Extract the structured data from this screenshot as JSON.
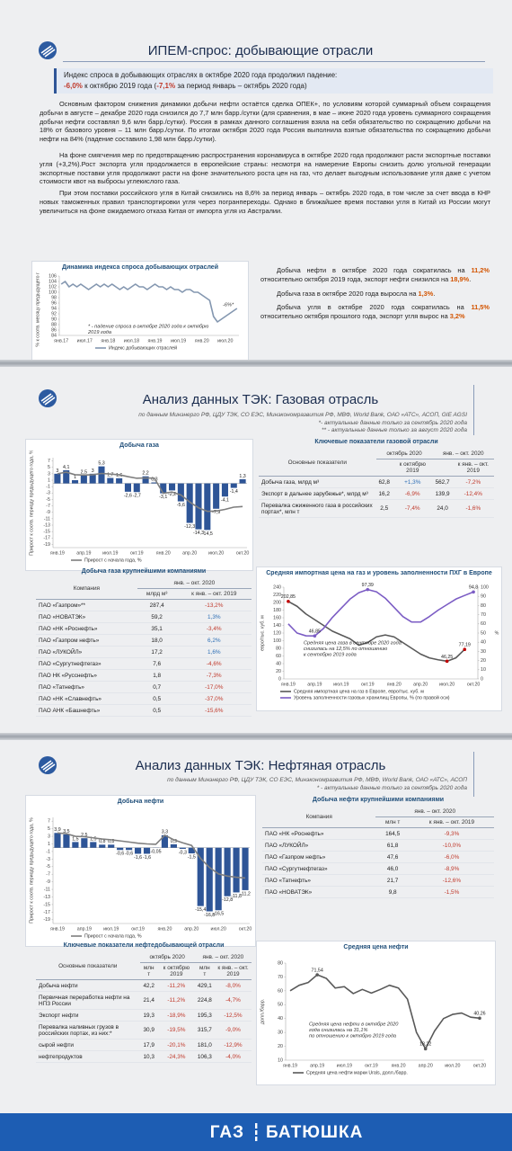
{
  "section1": {
    "title": "ИПЕМ-спрос: добывающие отрасли",
    "highlight": {
      "lead": "Индекс спроса в добывающих отраслях в октябре 2020 года продолжил падение:",
      "parts": [
        {
          "text": "-6,0%",
          "em": true
        },
        {
          "text": " к октябрю 2019 года ("
        },
        {
          "text": "-7,1%",
          "em": true
        },
        {
          "text": " за период январь – октябрь 2020 года)"
        }
      ]
    },
    "paragraphs": [
      "Основным фактором снижения динамики добычи нефти остаётся сделка ОПЕК+, по условиям которой суммарный объем сокращения добычи в августе – декабре 2020 года снизился до 7,7 млн барр./сутки (для сравнения, в мае – июне 2020 года уровень суммарного сокращения добычи нефти составлял 9,6 млн барр./сутки). Россия в рамках данного соглашения взяла на себя обязательство по сокращению добычи на 18% от базового уровня – 11 млн барр./сутки. По итогам октября 2020 года Россия выполнила взятые обязательства по сокращению добычи нефти на 84% (падение составило 1,98 млн барр./сутки).",
      "На фоне смягчения мер по предотвращению распространения коронавируса в октябре 2020 года продолжают расти экспортные поставки угля (+3,2%).Рост экспорта угля продолжается в европейские страны: несмотря на намерение Европы снизить долю угольной генерации экспортные поставки угля продолжают расти на фоне значительного роста цен на газ, что делает выгодным использование угля даже с учетом стоимости квот на выбросы углекислого газа.",
      "При этом поставки российского угля в Китай снизились на 8,6% за период январь – октябрь 2020 года, в том числе за счет ввода в КНР новых таможенных правил транспортировки угля через погранпереходы. Однако в ближайшее время поставки угля в Китай из России могут увеличиться на фоне ожидаемого отказа Китая от импорта угля из Австралии."
    ],
    "index_chart": {
      "type": "line",
      "title": "Динамика индекса спроса добывающих отраслей",
      "y_label": "% к соотв. месяцу предыдущего года",
      "categories": [
        "янв.17",
        null,
        null,
        null,
        null,
        null,
        "июл.17",
        null,
        null,
        null,
        null,
        null,
        "янв.18",
        null,
        null,
        null,
        null,
        null,
        "июл.18",
        null,
        null,
        null,
        null,
        null,
        "янв.19",
        null,
        null,
        null,
        null,
        null,
        "июл.19",
        null,
        null,
        null,
        null,
        null,
        "янв.20",
        null,
        null,
        null,
        null,
        null,
        "июл.20",
        null,
        null,
        null
      ],
      "series": [
        {
          "name": "Индекс добывающих отраслей",
          "kind": "line",
          "color": "#8497b0",
          "values": [
            103,
            104,
            102,
            103,
            102,
            103,
            102,
            101,
            102,
            103,
            102,
            103,
            102,
            103,
            102,
            101,
            102,
            101,
            102,
            103,
            102,
            102,
            101,
            102,
            103,
            102,
            102,
            101,
            102,
            101,
            101,
            100,
            101,
            101,
            100,
            100,
            99,
            98,
            97,
            91,
            89,
            90,
            91,
            92,
            93,
            94
          ]
        }
      ],
      "ylim": [
        84,
        106
      ],
      "yticks": [
        84,
        86,
        88,
        90,
        92,
        94,
        96,
        98,
        100,
        102,
        104,
        106
      ],
      "grid": false,
      "annotations": [
        {
          "lines": [
            "-6%*"
          ]
        },
        {
          "lines": [
            "* - падение спроса в октябре 2020 года к октябрю",
            "2019 года"
          ]
        }
      ]
    },
    "summary": [
      [
        {
          "text": "Добыча нефти в октябре 2020 года сократилась на "
        },
        {
          "text": "11,2%",
          "em": true
        },
        {
          "text": " относительно октября 2019 года, экспорт нефти снизился на "
        },
        {
          "text": "18,9%",
          "em": true
        },
        {
          "text": "."
        }
      ],
      [
        {
          "text": "Добыча газа в октябре 2020 года выросла на "
        },
        {
          "text": "1,3%",
          "em": true
        },
        {
          "text": "."
        }
      ],
      [
        {
          "text": "Добыча угля в октябре 2020 года сократилась на "
        },
        {
          "text": "11,5%",
          "em": true
        },
        {
          "text": " относительно октября прошлого года, экспорт угля вырос на "
        },
        {
          "text": "3,2%",
          "em": true
        }
      ]
    ]
  },
  "section2": {
    "title": "Анализ данных ТЭК: Газовая отрасль",
    "source": "по данным Минэнерго РФ, ЦДУ ТЭК, СО ЕЭС, Минэкономразвития РФ, МВФ, World Bank, ОАО «АТС», АСОП, GIE AGSI",
    "notes": [
      "*- актуальные данные только за сентябрь 2020 года",
      "** - актуальные данные только за август 2020 года"
    ],
    "production_chart": {
      "type": "bar",
      "title": "Добыча газа",
      "y_label": "Прирост к соотв. периоду предыдущего года, %",
      "categories": [
        "янв.19",
        null,
        null,
        "апр.19",
        null,
        null,
        "июл.19",
        null,
        null,
        "окт.19",
        null,
        null,
        "янв.20",
        null,
        null,
        "апр.20",
        null,
        null,
        "июл.20",
        null,
        null,
        "окт.20"
      ],
      "series": [
        {
          "kind": "bar",
          "color": "#2e5597",
          "values": [
            3,
            4.1,
            1,
            2.5,
            3,
            5.3,
            1.7,
            1.6,
            -2.6,
            -2.7,
            2.2,
            0.3,
            -3.1,
            -2.2,
            -5.6,
            -12.3,
            -14.3,
            -14.5,
            -7.9,
            -4.1,
            -1.4,
            1.3
          ],
          "value_labels": [
            "3",
            "4,1",
            "1",
            "2,5",
            "3",
            "5,3",
            "1,7",
            "1,6",
            "-2,6",
            "-2,7",
            "2,2",
            "0,3",
            "-3,1",
            "-2,2",
            "-5,6",
            "-12,3",
            "-14,3",
            "-14,5",
            "-7,9",
            "-4,1",
            "-1,4",
            "1,3"
          ]
        },
        {
          "name": "Прирост с начала года, %",
          "kind": "line",
          "color": "#7f7f7f",
          "values": [
            3,
            3.5,
            2.7,
            2.6,
            2.7,
            3.1,
            2.9,
            2.7,
            2.1,
            1.6,
            1.7,
            1.6,
            -3.1,
            -2.7,
            -3.6,
            -5.8,
            -7.6,
            -8.7,
            -8.6,
            -8.1,
            -7.4,
            -7.2
          ]
        }
      ],
      "ylim": [
        -20,
        8
      ],
      "yticks": [
        -19,
        -17,
        -15,
        -13,
        -11,
        -9,
        -7,
        -5,
        -3,
        -1,
        1,
        3,
        5,
        7
      ],
      "grid": false
    },
    "key_table": {
      "title": "Ключевые показатели газовой отрасли",
      "columns_top": [
        "Основные показатели",
        "октябрь 2020",
        "янв. – окт. 2020"
      ],
      "columns_sub": [
        "к октябрю 2019",
        "к янв. – окт. 2019"
      ],
      "rows": [
        [
          "Добыча газа, млрд м³",
          "62,8",
          "+1,3%",
          "562,7",
          "-7,2%"
        ],
        [
          "Экспорт в дальнее зарубежье*, млрд м³",
          "16,2",
          "-6,9%",
          "139,9",
          "-12,4%"
        ],
        [
          "Перевалка сжиженного газа в российских портах*, млн т",
          "2,5",
          "-7,4%",
          "24,0",
          "-1,6%"
        ]
      ]
    },
    "companies_table": {
      "title": "Добыча газа крупнейшими компаниями",
      "columns_top": [
        "Компания",
        "янв. – окт. 2020"
      ],
      "columns_sub": [
        "млрд м³",
        "к янв. – окт. 2019"
      ],
      "rows": [
        [
          "ПАО «Газпром»**",
          "287,4",
          "-13,2%"
        ],
        [
          "ПАО «НОВАТЭК»",
          "59,2",
          "1,3%"
        ],
        [
          "ПАО «НК «Роснефть»",
          "35,1",
          "-3,4%"
        ],
        [
          "ПАО «Газпром нефть»",
          "18,0",
          "6,2%"
        ],
        [
          "ПАО «ЛУКОЙЛ»",
          "17,2",
          "1,6%"
        ],
        [
          "ПАО «Сургутнефтегаз»",
          "7,6",
          "-4,6%"
        ],
        [
          "ПАО НК «Русснефть»",
          "1,8",
          "-7,3%"
        ],
        [
          "ПАО «Татнефть»",
          "0,7",
          "-17,0%"
        ],
        [
          "ПАО «НК «Славнефть»",
          "0,5",
          "-37,0%"
        ],
        [
          "ПАО АНК «Башнефть»",
          "0,5",
          "-15,6%"
        ]
      ]
    },
    "import_chart": {
      "type": "line",
      "title": "Средняя импортная цена на газ и уровень заполненности ПХГ в Европе",
      "y_label": "евро/тыс. куб. м",
      "y2_label": "%",
      "categories": [
        "янв.19",
        null,
        null,
        "апр.19",
        null,
        null,
        "июл.19",
        null,
        null,
        "окт.19",
        null,
        null,
        "янв.20",
        null,
        null,
        "апр.20",
        null,
        null,
        "июл.20",
        null,
        null,
        "окт.20"
      ],
      "series": [
        {
          "name": "Средняя импортная цена на газ в Европе, евро/тыс. куб. м",
          "kind": "line",
          "color": "#595959",
          "marker_color": "#c00000",
          "values": [
            202.85,
            190,
            170,
            155,
            140,
            125,
            115,
            105,
            88.2,
            95,
            110,
            115,
            110,
            95,
            80,
            65,
            55,
            50,
            46.25,
            55,
            77.19,
            null
          ],
          "value_labels": [
            "202,85",
            null,
            null,
            null,
            null,
            null,
            null,
            null,
            null,
            null,
            null,
            null,
            null,
            null,
            null,
            null,
            null,
            null,
            "46,25",
            null,
            "77,19",
            null
          ]
        },
        {
          "name": "Уровень заполненности газовых хранилищ Европы, % (по правой оси)",
          "kind": "line",
          "color": "#7b5cc4",
          "axis": "y2",
          "values": [
            60,
            50,
            47,
            46.85,
            55,
            67,
            77,
            87,
            94,
            97.39,
            95,
            88,
            78,
            68,
            62,
            62,
            68,
            75,
            81,
            87,
            91,
            94.8
          ],
          "value_labels": [
            null,
            null,
            null,
            "46,85",
            null,
            null,
            null,
            null,
            null,
            "97,39",
            null,
            null,
            null,
            null,
            null,
            null,
            null,
            null,
            null,
            null,
            null,
            "94,8"
          ]
        }
      ],
      "ylim": [
        0,
        240
      ],
      "yticks": [
        0,
        20,
        40,
        60,
        80,
        100,
        120,
        140,
        160,
        180,
        200,
        220,
        240
      ],
      "y2lim": [
        0,
        100
      ],
      "y2ticks": [
        0,
        10,
        20,
        30,
        40,
        50,
        60,
        70,
        80,
        90,
        100
      ],
      "grid": false,
      "annotations": [
        {
          "lines": [
            "Средняя цена газа в сентябре 2020 года",
            "снизилась на 12,5% по отношению",
            "к сентябрю 2019 года"
          ]
        }
      ]
    }
  },
  "section3": {
    "title": "Анализ данных ТЭК: Нефтяная отрасль",
    "source": "по данным Минэнерго РФ, ЦДУ ТЭК, СО ЕЭС, Минэкономразвития РФ, МВФ, World Bank, ОАО «АТС», АСОП",
    "notes": [
      "* - актуальные данные только за сентябрь 2020 года"
    ],
    "production_chart": {
      "type": "bar",
      "title": "Добыча нефти",
      "y_label": "Прирост к соотв. периоду предыдущего года, %",
      "categories": [
        "янв.19",
        null,
        null,
        "апр.19",
        null,
        null,
        "июл.19",
        null,
        null,
        "окт.19",
        null,
        null,
        "янв.20",
        null,
        null,
        "апр.20",
        null,
        null,
        "июл.20",
        null,
        null,
        "окт.20"
      ],
      "series": [
        {
          "kind": "bar",
          "color": "#2e5597",
          "values": [
            3.9,
            3.5,
            1.5,
            2.5,
            1.5,
            0.8,
            0.8,
            -0.6,
            -0.6,
            -1.6,
            -1.6,
            -0.05,
            3.3,
            0.9,
            -0.3,
            -1.5,
            -15.4,
            -16.8,
            -16.5,
            -12.8,
            -11.8,
            -11.2
          ],
          "value_labels": [
            "3,9",
            "3,5",
            "1,5",
            "2,5",
            "1,5",
            "0,8",
            "0,8",
            "-0,6",
            "-0,6",
            "-1,6",
            "-1,6",
            "-0,05",
            "3,3",
            "0,9",
            "-0,3",
            "-1,5",
            "-15,4",
            "-16,8",
            "-16,5",
            "-12,8",
            "-11,8",
            "-11,2"
          ]
        },
        {
          "name": "Прирост с начала года, %",
          "kind": "line",
          "color": "#7f7f7f",
          "values": [
            3.9,
            3.7,
            3,
            2.9,
            2.6,
            2.3,
            2.1,
            1.8,
            1.5,
            1.2,
            1,
            0.9,
            3.3,
            2.1,
            1.3,
            0.6,
            -2.8,
            -5.2,
            -6.9,
            -7.5,
            -7.8,
            -8
          ]
        }
      ],
      "ylim": [
        -20,
        8
      ],
      "yticks": [
        -19,
        -17,
        -15,
        -13,
        -11,
        -9,
        -7,
        -5,
        -3,
        -1,
        1,
        3,
        5,
        7
      ],
      "grid": false
    },
    "companies_table": {
      "title": "Добыча нефти крупнейшими компаниями",
      "columns_top": [
        "Компания",
        "янв. – окт. 2020"
      ],
      "columns_sub": [
        "млн т",
        "к янв. – окт. 2019"
      ],
      "rows": [
        [
          "ПАО «НК «Роснефть»",
          "164,5",
          "-9,3%"
        ],
        [
          "ПАО «ЛУКОЙЛ»",
          "61,8",
          "-10,0%"
        ],
        [
          "ПАО «Газпром нефть»",
          "47,6",
          "-6,0%"
        ],
        [
          "ПАО «Сургутнефтегаз»",
          "46,0",
          "-8,9%"
        ],
        [
          "ПАО «Татнефть»",
          "21,7",
          "-12,6%"
        ],
        [
          "ПАО «НОВАТЭК»",
          "9,8",
          "-1,5%"
        ]
      ]
    },
    "key_table": {
      "title": "Ключевые показатели нефтедобывающей отрасли",
      "columns_top": [
        "Основные показатели",
        "октябрь 2020",
        "янв. – окт. 2020"
      ],
      "columns_sub": [
        "млн т",
        "к октябрю 2019",
        "млн т",
        "к янв. – окт. 2019"
      ],
      "rows": [
        [
          "Добыча нефти",
          "42,2",
          "-11,2%",
          "429,1",
          "-8,0%"
        ],
        [
          "Первичная переработка нефти на НПЗ России",
          "21,4",
          "-11,2%",
          "224,8",
          "-4,7%"
        ],
        [
          "Экспорт нефти",
          "19,3",
          "-18,9%",
          "195,3",
          "-12,5%"
        ],
        [
          "Перевалка наливных грузов в российских портах, из них:*",
          "30,9",
          "-19,5%",
          "315,7",
          "-9,0%"
        ],
        [
          "сырой нефти",
          "17,9",
          "-20,1%",
          "181,0",
          "-12,9%"
        ],
        [
          "нефтепродуктов",
          "10,3",
          "-24,3%",
          "106,3",
          "-4,0%"
        ]
      ]
    },
    "price_chart": {
      "type": "line",
      "title": "Средняя цена нефти",
      "y_label": "долл./барр.",
      "categories": [
        "янв.19",
        null,
        null,
        "апр.19",
        null,
        null,
        "июл.19",
        null,
        null,
        "окт.19",
        null,
        null,
        "янв.20",
        null,
        null,
        "апр.20",
        null,
        null,
        "июл.20",
        null,
        null,
        "окт.20"
      ],
      "series": [
        {
          "name": "Средняя цена нефти марки Urals, долл./барр.",
          "kind": "line",
          "color": "#595959",
          "marker_color": "#595959",
          "values": [
            60,
            64,
            66,
            71.54,
            69,
            62,
            63,
            58,
            61,
            58.4,
            61,
            64,
            62,
            54,
            30,
            18.22,
            31,
            40,
            43,
            44,
            41,
            40.26
          ],
          "value_labels": [
            null,
            null,
            null,
            "71,54",
            null,
            null,
            null,
            null,
            null,
            null,
            null,
            null,
            null,
            null,
            null,
            "18,22",
            null,
            null,
            null,
            null,
            null,
            "40,26"
          ]
        }
      ],
      "ylim": [
        10,
        80
      ],
      "yticks": [
        10,
        20,
        30,
        40,
        50,
        60,
        70,
        80
      ],
      "grid": false,
      "annotations": [
        {
          "lines": [
            "Средняя цена нефти в октябре 2020",
            "года снизилась на 31,1%",
            "по отношению к октябрю 2019 года"
          ]
        }
      ]
    }
  },
  "footer": {
    "left": "ГАЗ",
    "right": "БАТЮШКА"
  }
}
